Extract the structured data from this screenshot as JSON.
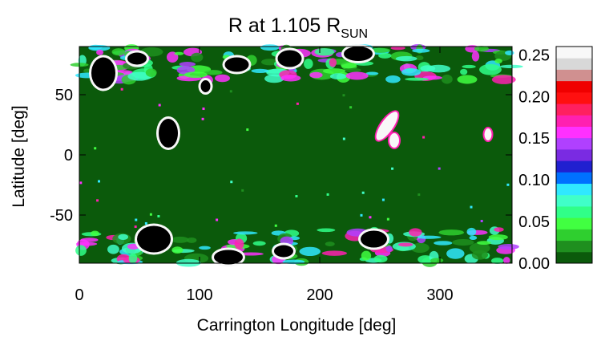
{
  "chart_data": {
    "type": "heatmap",
    "title": {
      "main": "R at 1.105 R",
      "subscript": "SUN"
    },
    "xlabel": "Carrington Longitude [deg]",
    "ylabel": "Latitude [deg]",
    "xlim": [
      0,
      360
    ],
    "ylim": [
      -90,
      90
    ],
    "xticks": [
      {
        "value": 0,
        "label": "0"
      },
      {
        "value": 100,
        "label": "100"
      },
      {
        "value": 200,
        "label": "200"
      },
      {
        "value": 300,
        "label": "300"
      }
    ],
    "yticks": [
      {
        "value": 50,
        "label": "50"
      },
      {
        "value": 0,
        "label": "0"
      },
      {
        "value": -50,
        "label": "-50"
      }
    ],
    "colorbar": {
      "min": 0.0,
      "max": 0.26,
      "ticks": [
        {
          "value": 0.0,
          "label": "0.00"
        },
        {
          "value": 0.05,
          "label": "0.05"
        },
        {
          "value": 0.1,
          "label": "0.10"
        },
        {
          "value": 0.15,
          "label": "0.15"
        },
        {
          "value": 0.2,
          "label": "0.20"
        },
        {
          "value": 0.25,
          "label": "0.25"
        }
      ],
      "colors": [
        "#0b5a0b",
        "#1f8f1f",
        "#2fcf2f",
        "#41ff41",
        "#30ff88",
        "#40ffc8",
        "#30e8ff",
        "#0070ff",
        "#2020d0",
        "#7a2be2",
        "#b040ff",
        "#ff30ff",
        "#ff20b0",
        "#ff2060",
        "#ff1010",
        "#f00000",
        "#d09090",
        "#d8d8d8",
        "#f8f8f8"
      ]
    },
    "background_value": 0.0,
    "coronal_holes": [
      {
        "lon": 20,
        "lat": 68,
        "rx": 10,
        "ry": 13
      },
      {
        "lon": 48,
        "lat": 80,
        "rx": 8,
        "ry": 5
      },
      {
        "lon": 74,
        "lat": 18,
        "rx": 8,
        "ry": 12
      },
      {
        "lon": 105,
        "lat": 57,
        "rx": 4,
        "ry": 5
      },
      {
        "lon": 131,
        "lat": 75,
        "rx": 10,
        "ry": 6
      },
      {
        "lon": 175,
        "lat": 80,
        "rx": 10,
        "ry": 7
      },
      {
        "lon": 232,
        "lat": 84,
        "rx": 12,
        "ry": 6
      },
      {
        "lon": 62,
        "lat": -70,
        "rx": 14,
        "ry": 11
      },
      {
        "lon": 245,
        "lat": -70,
        "rx": 11,
        "ry": 7
      },
      {
        "lon": 124,
        "lat": -85,
        "rx": 12,
        "ry": 6
      },
      {
        "lon": 170,
        "lat": -80,
        "rx": 8,
        "ry": 5
      }
    ],
    "bright_features": [
      {
        "lon": 256,
        "lat": 24,
        "rx": 14,
        "ry": 5,
        "angle": -55
      },
      {
        "lon": 262,
        "lat": 12,
        "rx": 4,
        "ry": 6,
        "angle": 0
      },
      {
        "lon": 340,
        "lat": 17,
        "rx": 3,
        "ry": 5,
        "angle": 0
      }
    ]
  }
}
